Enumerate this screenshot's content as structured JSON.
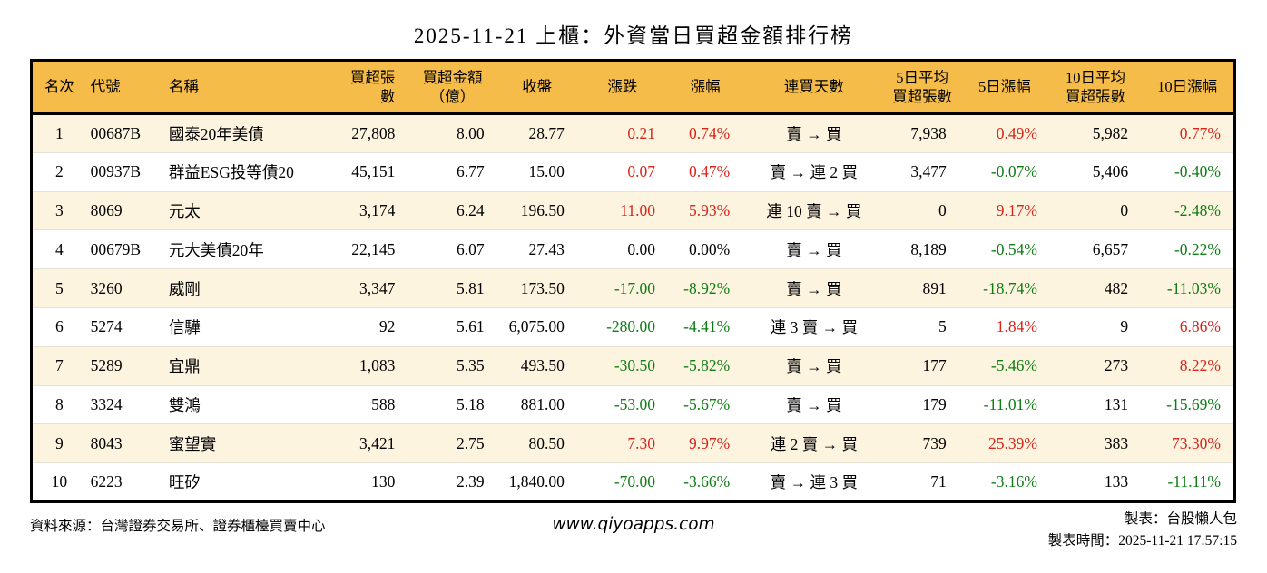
{
  "title": "2025-11-21 上櫃：外資當日買超金額排行榜",
  "table": {
    "columns": [
      "名次",
      "代號",
      "名稱",
      "買超張數",
      "買超金額\n（億）",
      "收盤",
      "漲跌",
      "漲幅",
      "連買天數",
      "5日平均\n買超張數",
      "5日漲幅",
      "10日平均\n買超張數",
      "10日漲幅"
    ],
    "rows": [
      [
        "1",
        "00687B",
        "國泰20年美債",
        "27,808",
        "8.00",
        "28.77",
        "0.21",
        "0.74%",
        "賣 → 買",
        "7,938",
        "0.49%",
        "5,982",
        "0.77%"
      ],
      [
        "2",
        "00937B",
        "群益ESG投等債20",
        "45,151",
        "6.77",
        "15.00",
        "0.07",
        "0.47%",
        "賣 → 連 2 買",
        "3,477",
        "-0.07%",
        "5,406",
        "-0.40%"
      ],
      [
        "3",
        "8069",
        "元太",
        "3,174",
        "6.24",
        "196.50",
        "11.00",
        "5.93%",
        "連 10 賣 → 買",
        "0",
        "9.17%",
        "0",
        "-2.48%"
      ],
      [
        "4",
        "00679B",
        "元大美債20年",
        "22,145",
        "6.07",
        "27.43",
        "0.00",
        "0.00%",
        "賣 → 買",
        "8,189",
        "-0.54%",
        "6,657",
        "-0.22%"
      ],
      [
        "5",
        "3260",
        "威剛",
        "3,347",
        "5.81",
        "173.50",
        "-17.00",
        "-8.92%",
        "賣 → 買",
        "891",
        "-18.74%",
        "482",
        "-11.03%"
      ],
      [
        "6",
        "5274",
        "信驊",
        "92",
        "5.61",
        "6,075.00",
        "-280.00",
        "-4.41%",
        "連 3 賣 → 買",
        "5",
        "1.84%",
        "9",
        "6.86%"
      ],
      [
        "7",
        "5289",
        "宜鼎",
        "1,083",
        "5.35",
        "493.50",
        "-30.50",
        "-5.82%",
        "賣 → 買",
        "177",
        "-5.46%",
        "273",
        "8.22%"
      ],
      [
        "8",
        "3324",
        "雙鴻",
        "588",
        "5.18",
        "881.00",
        "-53.00",
        "-5.67%",
        "賣 → 買",
        "179",
        "-11.01%",
        "131",
        "-15.69%"
      ],
      [
        "9",
        "8043",
        "蜜望實",
        "3,421",
        "2.75",
        "80.50",
        "7.30",
        "9.97%",
        "連 2 賣 → 買",
        "739",
        "25.39%",
        "383",
        "73.30%"
      ],
      [
        "10",
        "6223",
        "旺矽",
        "130",
        "2.39",
        "1,840.00",
        "-70.00",
        "-3.66%",
        "賣 → 連 3 買",
        "71",
        "-3.16%",
        "133",
        "-11.11%"
      ]
    ]
  },
  "footer": {
    "source": "資料來源：台灣證券交易所、證券櫃檯買賣中心",
    "website": "www.qiyoapps.com",
    "maker": "製表：台股懶人包",
    "timestamp": "製表時間：2025-11-21 17:57:15"
  },
  "colors": {
    "up": "#d9241a",
    "down": "#0e7d14",
    "header_bg": "#f6bc4a",
    "row_alt_bg": "#fdf4df"
  }
}
